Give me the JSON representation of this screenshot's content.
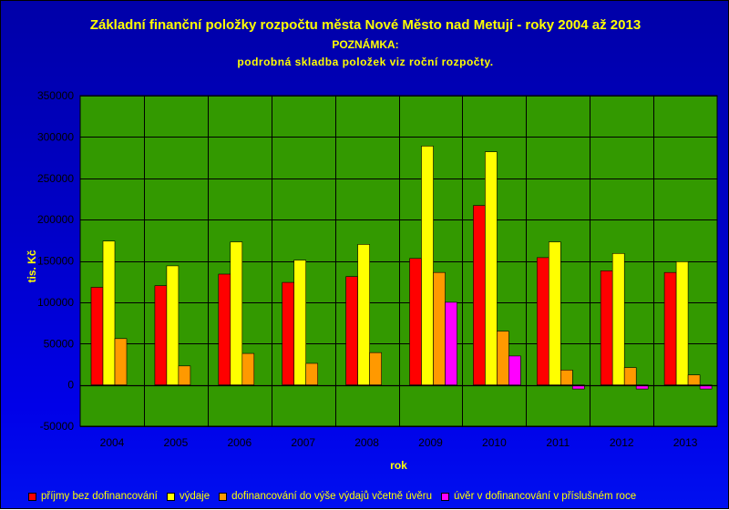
{
  "chart_data": {
    "type": "bar",
    "title": "Základní finanční položky rozpočtu města Nové Město nad Metují - roky 2004 až 2013",
    "subtitle_lines": [
      "POZNÁMKA:",
      "podrobná skladba položek viz roční rozpočty."
    ],
    "xlabel": "rok",
    "ylabel": "tis. Kč",
    "ylim": [
      -50000,
      350000
    ],
    "yticks": [
      -50000,
      0,
      50000,
      100000,
      150000,
      200000,
      250000,
      300000,
      350000
    ],
    "ytick_labels": [
      "-50000",
      "0",
      "50000",
      "100000",
      "150000",
      "200000",
      "250000",
      "300000",
      "350000"
    ],
    "grid": true,
    "legend_position": "bottom",
    "categories": [
      "2004",
      "2005",
      "2006",
      "2007",
      "2008",
      "2009",
      "2010",
      "2011",
      "2012",
      "2013"
    ],
    "series": [
      {
        "name": "příjmy bez dofinancování",
        "color": "#ff0000",
        "values": [
          118000,
          120000,
          134000,
          124000,
          131000,
          153000,
          217000,
          154000,
          138000,
          136000
        ]
      },
      {
        "name": "výdaje",
        "color": "#ffff00",
        "values": [
          174000,
          144000,
          173000,
          151000,
          170000,
          289000,
          282000,
          173000,
          159000,
          149000
        ]
      },
      {
        "name": "dofinancování do výše výdajů včetně úvěru",
        "color": "#ff9900",
        "values": [
          56000,
          23000,
          38000,
          26000,
          39000,
          136000,
          65000,
          18000,
          21000,
          12000
        ]
      },
      {
        "name": "úvěr v dofinancování v příslušném roce",
        "color": "#ff00ff",
        "values": [
          0,
          0,
          0,
          0,
          0,
          100000,
          35000,
          -5000,
          -5000,
          -5000
        ]
      }
    ],
    "plot_background": "#339900",
    "page_background": "#0000cc",
    "text_color": "#ffff00"
  }
}
